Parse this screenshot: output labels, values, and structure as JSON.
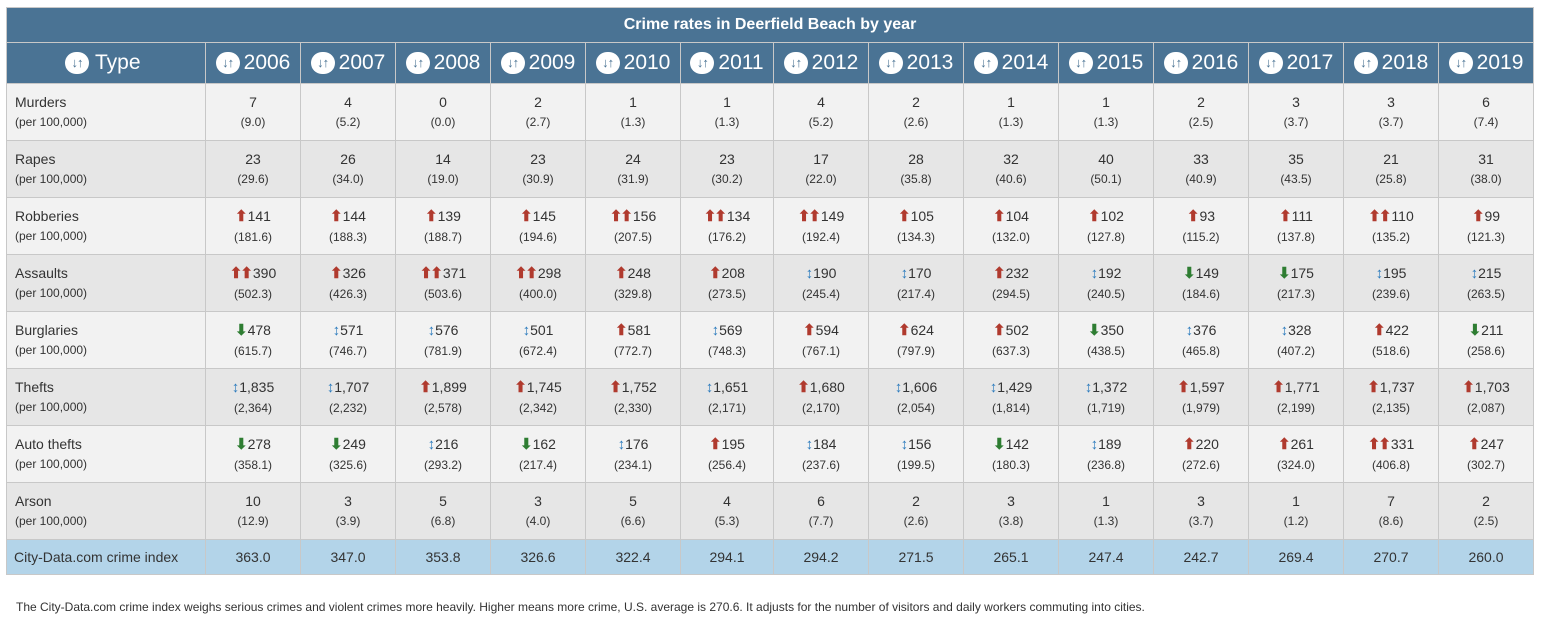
{
  "title": "Crime rates in Deerfield Beach by year",
  "type_header": "Type",
  "years": [
    "2006",
    "2007",
    "2008",
    "2009",
    "2010",
    "2011",
    "2012",
    "2013",
    "2014",
    "2015",
    "2016",
    "2017",
    "2018",
    "2019"
  ],
  "rows": [
    {
      "type": "Murders",
      "sub": "(per 100,000)",
      "cells": [
        {
          "v": "7",
          "r": "(9.0)"
        },
        {
          "v": "4",
          "r": "(5.2)"
        },
        {
          "v": "0",
          "r": "(0.0)"
        },
        {
          "v": "2",
          "r": "(2.7)"
        },
        {
          "v": "1",
          "r": "(1.3)"
        },
        {
          "v": "1",
          "r": "(1.3)"
        },
        {
          "v": "4",
          "r": "(5.2)"
        },
        {
          "v": "2",
          "r": "(2.6)"
        },
        {
          "v": "1",
          "r": "(1.3)"
        },
        {
          "v": "1",
          "r": "(1.3)"
        },
        {
          "v": "2",
          "r": "(2.5)"
        },
        {
          "v": "3",
          "r": "(3.7)"
        },
        {
          "v": "3",
          "r": "(3.7)"
        },
        {
          "v": "6",
          "r": "(7.4)"
        }
      ]
    },
    {
      "type": "Rapes",
      "sub": "(per 100,000)",
      "cells": [
        {
          "v": "23",
          "r": "(29.6)"
        },
        {
          "v": "26",
          "r": "(34.0)"
        },
        {
          "v": "14",
          "r": "(19.0)"
        },
        {
          "v": "23",
          "r": "(30.9)"
        },
        {
          "v": "24",
          "r": "(31.9)"
        },
        {
          "v": "23",
          "r": "(30.2)"
        },
        {
          "v": "17",
          "r": "(22.0)"
        },
        {
          "v": "28",
          "r": "(35.8)"
        },
        {
          "v": "32",
          "r": "(40.6)"
        },
        {
          "v": "40",
          "r": "(50.1)"
        },
        {
          "v": "33",
          "r": "(40.9)"
        },
        {
          "v": "35",
          "r": "(43.5)"
        },
        {
          "v": "21",
          "r": "(25.8)"
        },
        {
          "v": "31",
          "r": "(38.0)"
        }
      ]
    },
    {
      "type": "Robberies",
      "sub": "(per 100,000)",
      "cells": [
        {
          "v": "141",
          "r": "(181.6)",
          "a": "up"
        },
        {
          "v": "144",
          "r": "(188.3)",
          "a": "up"
        },
        {
          "v": "139",
          "r": "(188.7)",
          "a": "up"
        },
        {
          "v": "145",
          "r": "(194.6)",
          "a": "up"
        },
        {
          "v": "156",
          "r": "(207.5)",
          "a": "up2"
        },
        {
          "v": "134",
          "r": "(176.2)",
          "a": "up2"
        },
        {
          "v": "149",
          "r": "(192.4)",
          "a": "up2"
        },
        {
          "v": "105",
          "r": "(134.3)",
          "a": "up"
        },
        {
          "v": "104",
          "r": "(132.0)",
          "a": "up"
        },
        {
          "v": "102",
          "r": "(127.8)",
          "a": "up"
        },
        {
          "v": "93",
          "r": "(115.2)",
          "a": "up"
        },
        {
          "v": "111",
          "r": "(137.8)",
          "a": "up"
        },
        {
          "v": "110",
          "r": "(135.2)",
          "a": "up2"
        },
        {
          "v": "99",
          "r": "(121.3)",
          "a": "up"
        }
      ]
    },
    {
      "type": "Assaults",
      "sub": "(per 100,000)",
      "cells": [
        {
          "v": "390",
          "r": "(502.3)",
          "a": "up2"
        },
        {
          "v": "326",
          "r": "(426.3)",
          "a": "up"
        },
        {
          "v": "371",
          "r": "(503.6)",
          "a": "up2"
        },
        {
          "v": "298",
          "r": "(400.0)",
          "a": "up2"
        },
        {
          "v": "248",
          "r": "(329.8)",
          "a": "up"
        },
        {
          "v": "208",
          "r": "(273.5)",
          "a": "up"
        },
        {
          "v": "190",
          "r": "(245.4)",
          "a": "mid"
        },
        {
          "v": "170",
          "r": "(217.4)",
          "a": "mid"
        },
        {
          "v": "232",
          "r": "(294.5)",
          "a": "up"
        },
        {
          "v": "192",
          "r": "(240.5)",
          "a": "mid"
        },
        {
          "v": "149",
          "r": "(184.6)",
          "a": "down"
        },
        {
          "v": "175",
          "r": "(217.3)",
          "a": "down"
        },
        {
          "v": "195",
          "r": "(239.6)",
          "a": "mid"
        },
        {
          "v": "215",
          "r": "(263.5)",
          "a": "mid"
        }
      ]
    },
    {
      "type": "Burglaries",
      "sub": "(per 100,000)",
      "cells": [
        {
          "v": "478",
          "r": "(615.7)",
          "a": "down"
        },
        {
          "v": "571",
          "r": "(746.7)",
          "a": "mid"
        },
        {
          "v": "576",
          "r": "(781.9)",
          "a": "mid"
        },
        {
          "v": "501",
          "r": "(672.4)",
          "a": "mid"
        },
        {
          "v": "581",
          "r": "(772.7)",
          "a": "up"
        },
        {
          "v": "569",
          "r": "(748.3)",
          "a": "mid"
        },
        {
          "v": "594",
          "r": "(767.1)",
          "a": "up"
        },
        {
          "v": "624",
          "r": "(797.9)",
          "a": "up"
        },
        {
          "v": "502",
          "r": "(637.3)",
          "a": "up"
        },
        {
          "v": "350",
          "r": "(438.5)",
          "a": "down"
        },
        {
          "v": "376",
          "r": "(465.8)",
          "a": "mid"
        },
        {
          "v": "328",
          "r": "(407.2)",
          "a": "mid"
        },
        {
          "v": "422",
          "r": "(518.6)",
          "a": "up"
        },
        {
          "v": "211",
          "r": "(258.6)",
          "a": "down"
        }
      ]
    },
    {
      "type": "Thefts",
      "sub": "(per 100,000)",
      "cells": [
        {
          "v": "1,835",
          "r": "(2,364)",
          "a": "mid"
        },
        {
          "v": "1,707",
          "r": "(2,232)",
          "a": "mid"
        },
        {
          "v": "1,899",
          "r": "(2,578)",
          "a": "up"
        },
        {
          "v": "1,745",
          "r": "(2,342)",
          "a": "up"
        },
        {
          "v": "1,752",
          "r": "(2,330)",
          "a": "up"
        },
        {
          "v": "1,651",
          "r": "(2,171)",
          "a": "mid"
        },
        {
          "v": "1,680",
          "r": "(2,170)",
          "a": "up"
        },
        {
          "v": "1,606",
          "r": "(2,054)",
          "a": "mid"
        },
        {
          "v": "1,429",
          "r": "(1,814)",
          "a": "mid"
        },
        {
          "v": "1,372",
          "r": "(1,719)",
          "a": "mid"
        },
        {
          "v": "1,597",
          "r": "(1,979)",
          "a": "up"
        },
        {
          "v": "1,771",
          "r": "(2,199)",
          "a": "up"
        },
        {
          "v": "1,737",
          "r": "(2,135)",
          "a": "up"
        },
        {
          "v": "1,703",
          "r": "(2,087)",
          "a": "up"
        }
      ]
    },
    {
      "type": "Auto thefts",
      "sub": "(per 100,000)",
      "cells": [
        {
          "v": "278",
          "r": "(358.1)",
          "a": "down"
        },
        {
          "v": "249",
          "r": "(325.6)",
          "a": "down"
        },
        {
          "v": "216",
          "r": "(293.2)",
          "a": "mid"
        },
        {
          "v": "162",
          "r": "(217.4)",
          "a": "down"
        },
        {
          "v": "176",
          "r": "(234.1)",
          "a": "mid"
        },
        {
          "v": "195",
          "r": "(256.4)",
          "a": "up"
        },
        {
          "v": "184",
          "r": "(237.6)",
          "a": "mid"
        },
        {
          "v": "156",
          "r": "(199.5)",
          "a": "mid"
        },
        {
          "v": "142",
          "r": "(180.3)",
          "a": "down"
        },
        {
          "v": "189",
          "r": "(236.8)",
          "a": "mid"
        },
        {
          "v": "220",
          "r": "(272.6)",
          "a": "up"
        },
        {
          "v": "261",
          "r": "(324.0)",
          "a": "up"
        },
        {
          "v": "331",
          "r": "(406.8)",
          "a": "up2"
        },
        {
          "v": "247",
          "r": "(302.7)",
          "a": "up"
        }
      ]
    },
    {
      "type": "Arson",
      "sub": "(per 100,000)",
      "cells": [
        {
          "v": "10",
          "r": "(12.9)"
        },
        {
          "v": "3",
          "r": "(3.9)"
        },
        {
          "v": "5",
          "r": "(6.8)"
        },
        {
          "v": "3",
          "r": "(4.0)"
        },
        {
          "v": "5",
          "r": "(6.6)"
        },
        {
          "v": "4",
          "r": "(5.3)"
        },
        {
          "v": "6",
          "r": "(7.7)"
        },
        {
          "v": "2",
          "r": "(2.6)"
        },
        {
          "v": "3",
          "r": "(3.8)"
        },
        {
          "v": "1",
          "r": "(1.3)"
        },
        {
          "v": "3",
          "r": "(3.7)"
        },
        {
          "v": "1",
          "r": "(1.2)"
        },
        {
          "v": "7",
          "r": "(8.6)"
        },
        {
          "v": "2",
          "r": "(2.5)"
        }
      ]
    }
  ],
  "index_row": {
    "label": "City-Data.com crime index",
    "values": [
      "363.0",
      "347.0",
      "353.8",
      "326.6",
      "322.4",
      "294.1",
      "294.2",
      "271.5",
      "265.1",
      "247.4",
      "242.7",
      "269.4",
      "270.7",
      "260.0"
    ]
  },
  "footnote": "The City-Data.com crime index weighs serious crimes and violent crimes more heavily. Higher means more crime, U.S. average is 270.6. It adjusts for the number of visitors and daily workers commuting into cities.",
  "icons": {
    "sort": "sort-icon",
    "up": "arrow-up-icon",
    "up2": "double-arrow-up-icon",
    "down": "arrow-down-icon",
    "mid": "arrow-updown-icon"
  },
  "colors": {
    "header_bg": "#4a7394",
    "row_odd": "#f2f2f2",
    "row_even": "#e6e6e6",
    "index_bg": "#b3d4e9",
    "arrow_up": "#b03a2e",
    "arrow_down": "#2e7d32",
    "arrow_mid": "#2c7bbd"
  }
}
